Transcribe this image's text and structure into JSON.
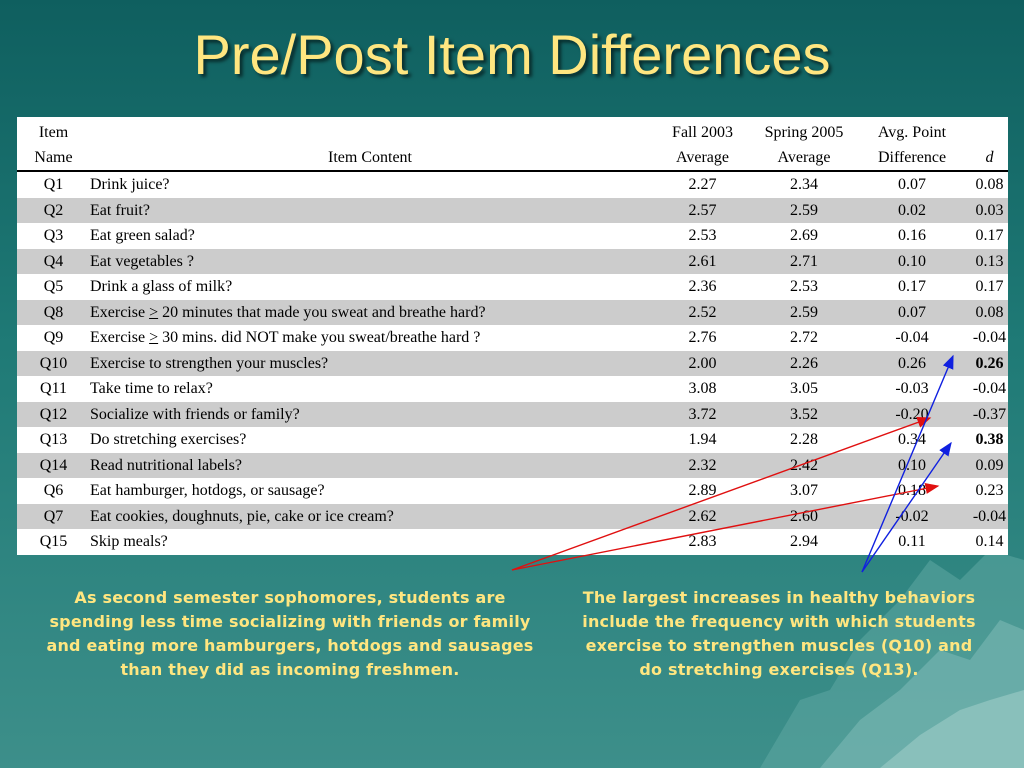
{
  "slide": {
    "title": "Pre/Post Item Differences"
  },
  "table": {
    "headers": {
      "name_line1": "Item",
      "name_line2": "Name",
      "content": "Item Content",
      "fall_line1": "Fall 2003",
      "fall_line2": "Average",
      "spring_line1": "Spring 2005",
      "spring_line2": "Average",
      "diff_line1": "Avg. Point",
      "diff_line2": "Difference",
      "d": "d"
    },
    "rows": [
      {
        "name": "Q1",
        "content": "Drink juice?",
        "fall": "2.27",
        "spring": "2.34",
        "diff": "0.07",
        "d": "0.08"
      },
      {
        "name": "Q2",
        "content": "Eat fruit?",
        "fall": "2.57",
        "spring": "2.59",
        "diff": "0.02",
        "d": "0.03"
      },
      {
        "name": "Q3",
        "content": "Eat green salad?",
        "fall": "2.53",
        "spring": "2.69",
        "diff": "0.16",
        "d": "0.17"
      },
      {
        "name": "Q4",
        "content": "Eat vegetables ?",
        "fall": "2.61",
        "spring": "2.71",
        "diff": "0.10",
        "d": "0.13"
      },
      {
        "name": "Q5",
        "content": "Drink a glass of milk?",
        "fall": "2.36",
        "spring": "2.53",
        "diff": "0.17",
        "d": "0.17"
      },
      {
        "name": "Q8",
        "content_pre": "Exercise ",
        "content_sym": ">",
        "content_post": " 20 minutes that made you sweat and breathe hard?",
        "fall": "2.52",
        "spring": "2.59",
        "diff": "0.07",
        "d": "0.08"
      },
      {
        "name": "Q9",
        "content_pre": "Exercise ",
        "content_sym": ">",
        "content_post": " 30 mins. did NOT make you sweat/breathe hard ?",
        "fall": "2.76",
        "spring": "2.72",
        "diff": "-0.04",
        "d": "-0.04"
      },
      {
        "name": "Q10",
        "content": "Exercise to strengthen your muscles?",
        "fall": "2.00",
        "spring": "2.26",
        "diff": "0.26",
        "d": "0.26"
      },
      {
        "name": "Q11",
        "content": "Take time to relax?",
        "fall": "3.08",
        "spring": "3.05",
        "diff": "-0.03",
        "d": "-0.04"
      },
      {
        "name": "Q12",
        "content": "Socialize with friends or family?",
        "fall": "3.72",
        "spring": "3.52",
        "diff": "-0.20",
        "d": "-0.37"
      },
      {
        "name": "Q13",
        "content": "Do stretching exercises?",
        "fall": "1.94",
        "spring": "2.28",
        "diff": "0.34",
        "d": "0.38"
      },
      {
        "name": "Q14",
        "content": "Read nutritional labels?",
        "fall": "2.32",
        "spring": "2.42",
        "diff": "0.10",
        "d": "0.09"
      },
      {
        "name": "Q6",
        "content": "Eat hamburger, hotdogs, or sausage?",
        "fall": "2.89",
        "spring": "3.07",
        "diff": "0.18",
        "d": "0.23"
      },
      {
        "name": "Q7",
        "content": "Eat cookies, doughnuts, pie, cake or ice cream?",
        "fall": "2.62",
        "spring": "2.60",
        "diff": "-0.02",
        "d": "-0.04"
      },
      {
        "name": "Q15",
        "content": "Skip meals?",
        "fall": "2.83",
        "spring": "2.94",
        "diff": "0.11",
        "d": "0.14"
      }
    ]
  },
  "notes": {
    "left": "As second semester sophomores, students are spending less time socializing with friends or family and eating more hamburgers, hotdogs and sausages than they did as incoming freshmen.",
    "right": "The largest increases in healthy behaviors include the frequency with which students exercise to strengthen muscles (Q10) and do stretching exercises (Q13)."
  },
  "colors": {
    "title": "#ffe680",
    "note_text": "#ffe680",
    "row_shade": "#cccccc",
    "arrow_red": "#e01010",
    "arrow_blue": "#1020e0"
  }
}
